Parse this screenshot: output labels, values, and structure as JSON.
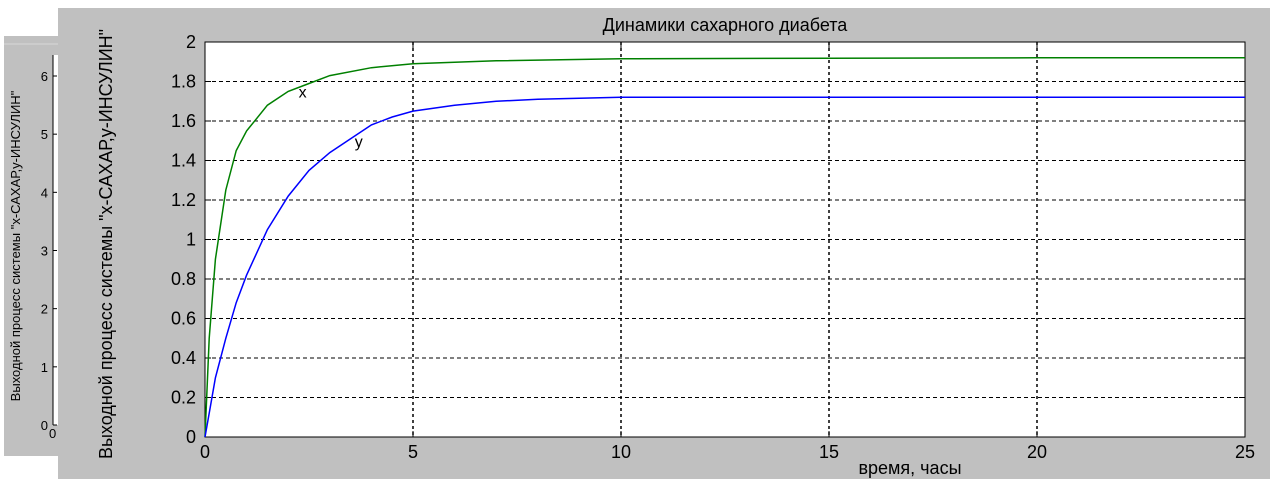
{
  "background_chart": {
    "ylabel": "Выходной процесс системы \"x-САХАР,y-ИНСУЛИН\"",
    "ytick_labels": [
      "0",
      "1",
      "2",
      "3",
      "4",
      "5",
      "6"
    ],
    "xtick_label_partial": "0"
  },
  "colors": {
    "figure_bg": "#c0c0c0",
    "axes_bg": "#ffffff",
    "series_x": "#008000",
    "series_y": "#0000ff",
    "text": "#000000"
  },
  "chart_data": {
    "type": "line",
    "title": "Динамики сахарного диабета",
    "xlabel": "время, часы",
    "ylabel": "Выходной процесс системы \"x-САХАР,y-ИНСУЛИН\"",
    "xlim": [
      0,
      25
    ],
    "ylim": [
      0,
      2
    ],
    "xticks": [
      0,
      5,
      10,
      15,
      20,
      25
    ],
    "yticks": [
      0,
      0.2,
      0.4,
      0.6,
      0.8,
      1,
      1.2,
      1.4,
      1.6,
      1.8,
      2
    ],
    "xtick_labels": [
      "0",
      "5",
      "10",
      "15",
      "20",
      "25"
    ],
    "ytick_labels": [
      "0",
      "0.2",
      "0.4",
      "0.6",
      "0.8",
      "1",
      "1.2",
      "1.4",
      "1.6",
      "1.8",
      "2"
    ],
    "grid": true,
    "series": [
      {
        "name": "x",
        "color": "#008000",
        "x": [
          0,
          0.1,
          0.25,
          0.5,
          0.75,
          1,
          1.5,
          2,
          2.5,
          3,
          4,
          5,
          7,
          10,
          15,
          20,
          25
        ],
        "y": [
          0,
          0.5,
          0.9,
          1.25,
          1.45,
          1.55,
          1.68,
          1.75,
          1.79,
          1.83,
          1.87,
          1.89,
          1.905,
          1.915,
          1.918,
          1.92,
          1.92
        ]
      },
      {
        "name": "y",
        "color": "#0000ff",
        "x": [
          0,
          0.1,
          0.25,
          0.5,
          0.75,
          1,
          1.5,
          2,
          2.5,
          3,
          3.5,
          4,
          4.5,
          5,
          6,
          7,
          8,
          10,
          15,
          20,
          25
        ],
        "y": [
          0,
          0.12,
          0.3,
          0.5,
          0.68,
          0.82,
          1.05,
          1.22,
          1.35,
          1.44,
          1.51,
          1.58,
          1.62,
          1.65,
          1.68,
          1.7,
          1.71,
          1.72,
          1.72,
          1.72,
          1.72
        ]
      }
    ],
    "annotations": [
      {
        "text": "x",
        "x": 2.25,
        "y": 1.75
      },
      {
        "text": "y",
        "x": 3.6,
        "y": 1.5
      }
    ]
  }
}
